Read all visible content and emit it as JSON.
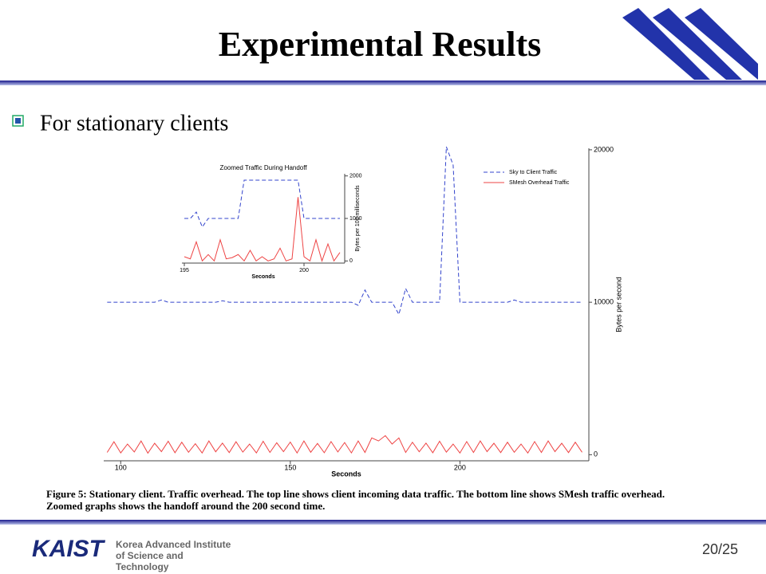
{
  "slide": {
    "title": "Experimental Results",
    "bullet": "For stationary clients",
    "caption": "Figure 5: Stationary client. Traffic overhead. The top line shows client incoming data traffic. The bottom line shows SMesh traffic overhead. Zoomed graphs shows the handoff around the 200 second time.",
    "footer": {
      "logo": "KAIST",
      "institute": "Korea Advanced Institute of Science and Technology",
      "page": "20/25"
    }
  },
  "chart_data": [
    {
      "type": "line",
      "xlabel": "Seconds",
      "ylabel": "Bytes per second",
      "yaxis_side": "right",
      "legend": "upper right",
      "xlim": [
        95,
        238
      ],
      "ylim": [
        -400,
        20100
      ],
      "xticks": [
        100,
        150,
        200
      ],
      "yticks": [
        0,
        10000,
        20000
      ],
      "x": [
        96,
        98,
        100,
        102,
        104,
        106,
        108,
        110,
        112,
        114,
        116,
        118,
        120,
        122,
        124,
        126,
        128,
        130,
        132,
        134,
        136,
        138,
        140,
        142,
        144,
        146,
        148,
        150,
        152,
        154,
        156,
        158,
        160,
        162,
        164,
        166,
        168,
        170,
        172,
        174,
        176,
        178,
        180,
        182,
        184,
        186,
        188,
        190,
        192,
        194,
        196,
        198,
        200,
        202,
        204,
        206,
        208,
        210,
        212,
        214,
        216,
        218,
        220,
        222,
        224,
        226,
        228,
        230,
        232,
        234,
        236
      ],
      "series": [
        {
          "name": "Sky to Client Traffic",
          "color": "#3344cc",
          "style": "dashed",
          "values": [
            10000,
            10000,
            10000,
            10000,
            10000,
            10000,
            10000,
            10000,
            10150,
            10000,
            10000,
            10000,
            10000,
            10000,
            10000,
            10000,
            10000,
            10100,
            10000,
            10000,
            10000,
            10000,
            10000,
            10000,
            10000,
            10000,
            10000,
            10000,
            10000,
            10000,
            10000,
            10000,
            10000,
            10000,
            10000,
            10000,
            10000,
            9800,
            10800,
            10000,
            10000,
            10000,
            10000,
            9200,
            10900,
            10000,
            10000,
            10000,
            10000,
            10000,
            20200,
            19000,
            10000,
            10000,
            10000,
            10000,
            10000,
            10000,
            10000,
            10000,
            10150,
            10000,
            10000,
            10000,
            10000,
            10000,
            10000,
            10000,
            10000,
            10000,
            10000
          ]
        },
        {
          "name": "SMesh Overhead Traffic",
          "color": "#ee4444",
          "style": "solid",
          "values": [
            150,
            850,
            120,
            700,
            180,
            900,
            100,
            750,
            200,
            880,
            130,
            820,
            160,
            720,
            110,
            900,
            190,
            760,
            140,
            850,
            170,
            700,
            120,
            880,
            150,
            780,
            200,
            830,
            110,
            900,
            160,
            740,
            130,
            860,
            180,
            800,
            120,
            900,
            150,
            1100,
            900,
            1250,
            700,
            1100,
            150,
            820,
            190,
            760,
            130,
            880,
            170,
            700,
            110,
            860,
            150,
            900,
            200,
            750,
            140,
            820,
            160,
            700,
            110,
            860,
            150,
            900,
            200,
            750,
            140,
            820,
            160
          ]
        }
      ]
    },
    {
      "type": "line",
      "title": "Zoomed Traffic During Handoff",
      "xlabel": "Seconds",
      "ylabel": "Bytes per 100 milliseconds",
      "yaxis_side": "right",
      "xlim": [
        194.9,
        201.7
      ],
      "ylim": [
        -50,
        2050
      ],
      "xticks": [
        195,
        200
      ],
      "yticks": [
        0,
        1000,
        2000
      ],
      "x": [
        195,
        195.25,
        195.5,
        195.75,
        196,
        196.25,
        196.5,
        196.75,
        197,
        197.25,
        197.5,
        197.75,
        198,
        198.25,
        198.5,
        198.75,
        199,
        199.25,
        199.5,
        199.75,
        200,
        200.25,
        200.5,
        200.75,
        201,
        201.25,
        201.5
      ],
      "series": [
        {
          "color": "#3344cc",
          "style": "dashed",
          "values": [
            1000,
            1000,
            1150,
            800,
            1000,
            1000,
            1000,
            1000,
            1000,
            1000,
            1900,
            1900,
            1900,
            1900,
            1900,
            1900,
            1900,
            1900,
            1900,
            1900,
            1000,
            1000,
            1000,
            1000,
            1000,
            1000,
            1000
          ]
        },
        {
          "color": "#ee4444",
          "style": "solid",
          "values": [
            100,
            50,
            450,
            0,
            150,
            0,
            500,
            50,
            80,
            150,
            0,
            250,
            0,
            100,
            0,
            50,
            300,
            0,
            50,
            1500,
            100,
            0,
            500,
            0,
            400,
            0,
            200
          ]
        }
      ]
    }
  ]
}
